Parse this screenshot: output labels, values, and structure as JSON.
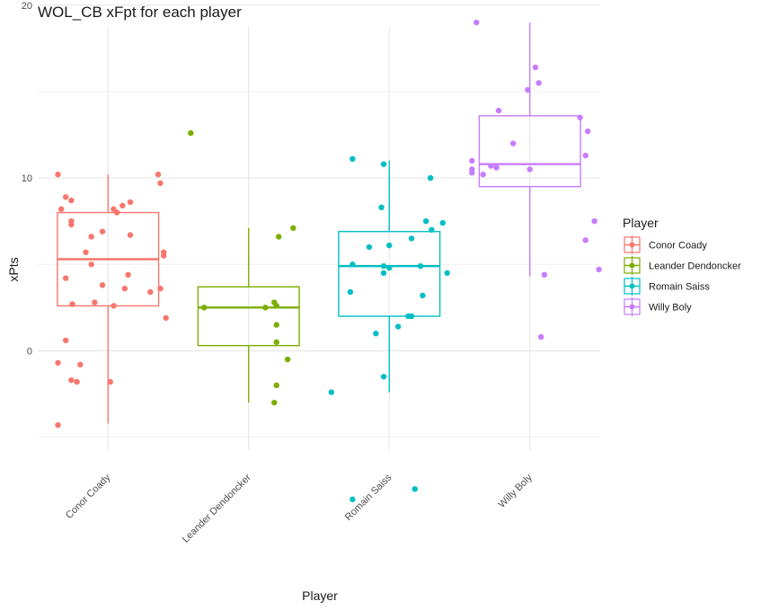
{
  "chart_data": {
    "type": "boxplot",
    "title": "WOL_CB xFpt for each player",
    "xlabel": "Player",
    "ylabel": "xPts",
    "ylim": [
      -5.8,
      20.3
    ],
    "yticks": [
      0,
      10,
      20
    ],
    "grid": true,
    "legend": {
      "title": "Player",
      "position": "right"
    },
    "categories": [
      "Conor Coady",
      "Leander Dendoncker",
      "Romain Saiss",
      "Willy Boly"
    ],
    "colors": [
      "#f8766d",
      "#7cae00",
      "#00bfc4",
      "#c77cff"
    ],
    "series": [
      {
        "name": "Conor Coady",
        "box": {
          "whisker_low": -4.2,
          "q1": 2.6,
          "median": 5.3,
          "q3": 8.0,
          "whisker_high": 10.2
        },
        "points": [
          {
            "x": -0.45,
            "y": 10.2
          },
          {
            "x": 0.45,
            "y": 10.2
          },
          {
            "x": 0.47,
            "y": 9.7
          },
          {
            "x": -0.38,
            "y": 8.9
          },
          {
            "x": -0.33,
            "y": 8.7
          },
          {
            "x": 0.2,
            "y": 8.6
          },
          {
            "x": 0.13,
            "y": 8.4
          },
          {
            "x": 0.05,
            "y": 8.2
          },
          {
            "x": -0.42,
            "y": 8.2
          },
          {
            "x": 0.08,
            "y": 8.0
          },
          {
            "x": -0.33,
            "y": 7.5
          },
          {
            "x": -0.33,
            "y": 7.3
          },
          {
            "x": -0.05,
            "y": 6.9
          },
          {
            "x": 0.2,
            "y": 6.7
          },
          {
            "x": -0.15,
            "y": 6.6
          },
          {
            "x": -0.2,
            "y": 5.7
          },
          {
            "x": 0.5,
            "y": 5.7
          },
          {
            "x": 0.5,
            "y": 5.5
          },
          {
            "x": -0.15,
            "y": 5.0
          },
          {
            "x": 0.18,
            "y": 4.4
          },
          {
            "x": -0.38,
            "y": 4.2
          },
          {
            "x": -0.05,
            "y": 3.8
          },
          {
            "x": 0.15,
            "y": 3.6
          },
          {
            "x": 0.47,
            "y": 3.6
          },
          {
            "x": 0.38,
            "y": 3.4
          },
          {
            "x": -0.32,
            "y": 2.7
          },
          {
            "x": -0.12,
            "y": 2.8
          },
          {
            "x": 0.05,
            "y": 2.6
          },
          {
            "x": 0.52,
            "y": 1.9
          },
          {
            "x": -0.38,
            "y": 0.6
          },
          {
            "x": -0.45,
            "y": -0.7
          },
          {
            "x": -0.25,
            "y": -0.8
          },
          {
            "x": -0.33,
            "y": -1.7
          },
          {
            "x": -0.28,
            "y": -1.8
          },
          {
            "x": 0.02,
            "y": -1.8
          },
          {
            "x": -0.45,
            "y": -4.3
          }
        ]
      },
      {
        "name": "Leander Dendoncker",
        "box": {
          "whisker_low": -3.0,
          "q1": 0.3,
          "median": 2.5,
          "q3": 3.7,
          "whisker_high": 7.1
        },
        "points": [
          {
            "x": -0.52,
            "y": 12.6
          },
          {
            "x": 0.4,
            "y": 7.1
          },
          {
            "x": 0.27,
            "y": 6.6
          },
          {
            "x": 0.23,
            "y": 2.8
          },
          {
            "x": -0.4,
            "y": 2.5
          },
          {
            "x": 0.15,
            "y": 2.5
          },
          {
            "x": 0.25,
            "y": 2.6
          },
          {
            "x": 0.25,
            "y": 1.5
          },
          {
            "x": 0.25,
            "y": 0.5
          },
          {
            "x": 0.35,
            "y": -0.5
          },
          {
            "x": 0.25,
            "y": -2.0
          },
          {
            "x": 0.23,
            "y": -3.0
          }
        ]
      },
      {
        "name": "Romain Saiss",
        "box": {
          "whisker_low": -2.4,
          "q1": 2.0,
          "median": 4.9,
          "q3": 6.9,
          "whisker_high": 11.0
        },
        "points": [
          {
            "x": -0.33,
            "y": 11.1
          },
          {
            "x": -0.05,
            "y": 10.8
          },
          {
            "x": 0.37,
            "y": 10.0
          },
          {
            "x": -0.07,
            "y": 8.3
          },
          {
            "x": 0.33,
            "y": 7.5
          },
          {
            "x": 0.48,
            "y": 7.4
          },
          {
            "x": 0.38,
            "y": 7.0
          },
          {
            "x": 0.2,
            "y": 6.5
          },
          {
            "x": 0.0,
            "y": 6.1
          },
          {
            "x": -0.18,
            "y": 6.0
          },
          {
            "x": -0.33,
            "y": 5.0
          },
          {
            "x": -0.05,
            "y": 4.9
          },
          {
            "x": 0.0,
            "y": 4.8
          },
          {
            "x": 0.28,
            "y": 4.9
          },
          {
            "x": -0.05,
            "y": 4.5
          },
          {
            "x": 0.52,
            "y": 4.5
          },
          {
            "x": -0.35,
            "y": 3.4
          },
          {
            "x": 0.3,
            "y": 3.2
          },
          {
            "x": 0.17,
            "y": 2.0
          },
          {
            "x": 0.2,
            "y": 2.0
          },
          {
            "x": 0.08,
            "y": 1.4
          },
          {
            "x": -0.12,
            "y": 1.0
          },
          {
            "x": -0.05,
            "y": -1.5
          },
          {
            "x": -0.52,
            "y": -2.4
          },
          {
            "x": 0.23,
            "y": -8.0
          },
          {
            "x": -0.33,
            "y": -8.6
          }
        ]
      },
      {
        "name": "Willy Boly",
        "box": {
          "whisker_low": 4.3,
          "q1": 9.5,
          "median": 10.8,
          "q3": 13.6,
          "whisker_high": 19.0
        },
        "points": [
          {
            "x": -0.48,
            "y": 19.0
          },
          {
            "x": 0.05,
            "y": 16.4
          },
          {
            "x": 0.08,
            "y": 15.5
          },
          {
            "x": -0.02,
            "y": 15.1
          },
          {
            "x": -0.28,
            "y": 13.9
          },
          {
            "x": 0.45,
            "y": 13.5
          },
          {
            "x": 0.52,
            "y": 12.7
          },
          {
            "x": -0.15,
            "y": 12.0
          },
          {
            "x": 0.5,
            "y": 11.3
          },
          {
            "x": -0.52,
            "y": 11.0
          },
          {
            "x": -0.35,
            "y": 10.7
          },
          {
            "x": -0.52,
            "y": 10.5
          },
          {
            "x": -0.3,
            "y": 10.6
          },
          {
            "x": 0.0,
            "y": 10.5
          },
          {
            "x": -0.52,
            "y": 10.3
          },
          {
            "x": -0.42,
            "y": 10.2
          },
          {
            "x": 0.58,
            "y": 7.5
          },
          {
            "x": 0.5,
            "y": 6.4
          },
          {
            "x": 0.62,
            "y": 4.7
          },
          {
            "x": 0.13,
            "y": 4.4
          },
          {
            "x": 0.1,
            "y": 0.8
          }
        ]
      }
    ]
  }
}
